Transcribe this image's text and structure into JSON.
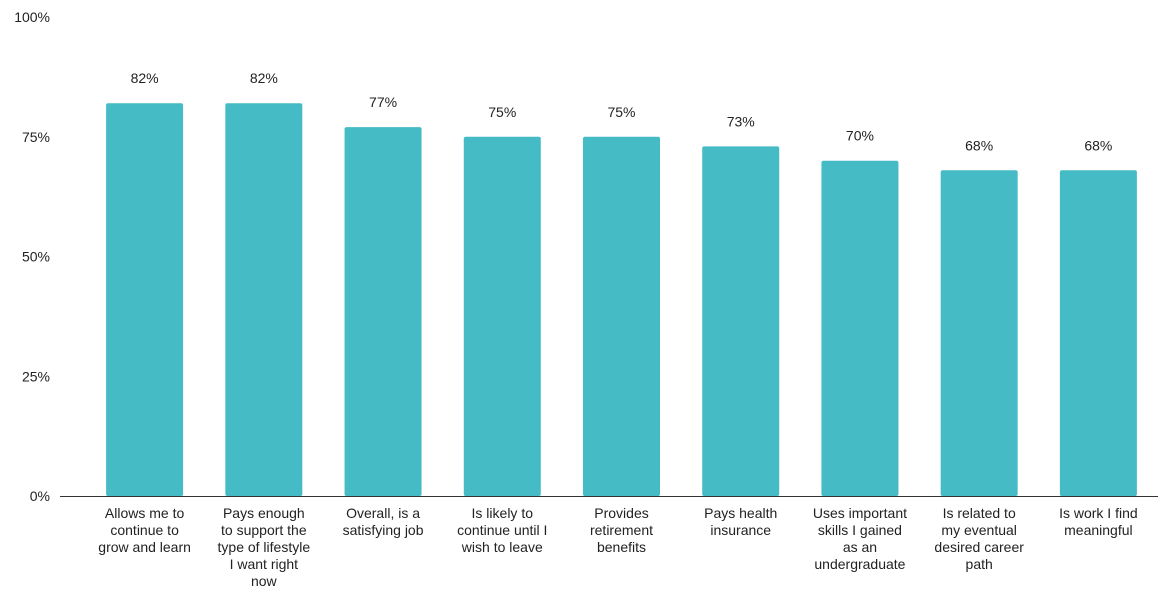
{
  "chart_data": {
    "type": "bar",
    "title": "",
    "xlabel": "",
    "ylabel": "",
    "ylim": [
      0,
      100
    ],
    "grid": false,
    "y_ticks": [
      "0%",
      "25%",
      "50%",
      "75%",
      "100%"
    ],
    "y_tick_values": [
      0,
      25,
      50,
      75,
      100
    ],
    "categories": [
      [
        "Allows me to",
        "continue to",
        "grow and learn"
      ],
      [
        "Pays enough",
        "to support the",
        "type of lifestyle",
        "I want right",
        "now"
      ],
      [
        "Overall, is a",
        "satisfying job"
      ],
      [
        "Is likely to",
        "continue until I",
        "wish to leave"
      ],
      [
        "Provides",
        "retirement",
        "benefits"
      ],
      [
        "Pays health",
        "insurance"
      ],
      [
        "Uses important",
        "skills I gained",
        "as an",
        "undergraduate"
      ],
      [
        "Is related to",
        "my eventual",
        "desired career",
        "path"
      ],
      [
        "Is work I find",
        "meaningful"
      ]
    ],
    "values": [
      82,
      82,
      77,
      75,
      75,
      73,
      70,
      68,
      68
    ],
    "data_labels": [
      "82%",
      "82%",
      "77%",
      "75%",
      "75%",
      "73%",
      "70%",
      "68%",
      "68%"
    ],
    "colors": {
      "bar": "#45BBC6",
      "axis": "#333333",
      "text": "#222222"
    }
  }
}
